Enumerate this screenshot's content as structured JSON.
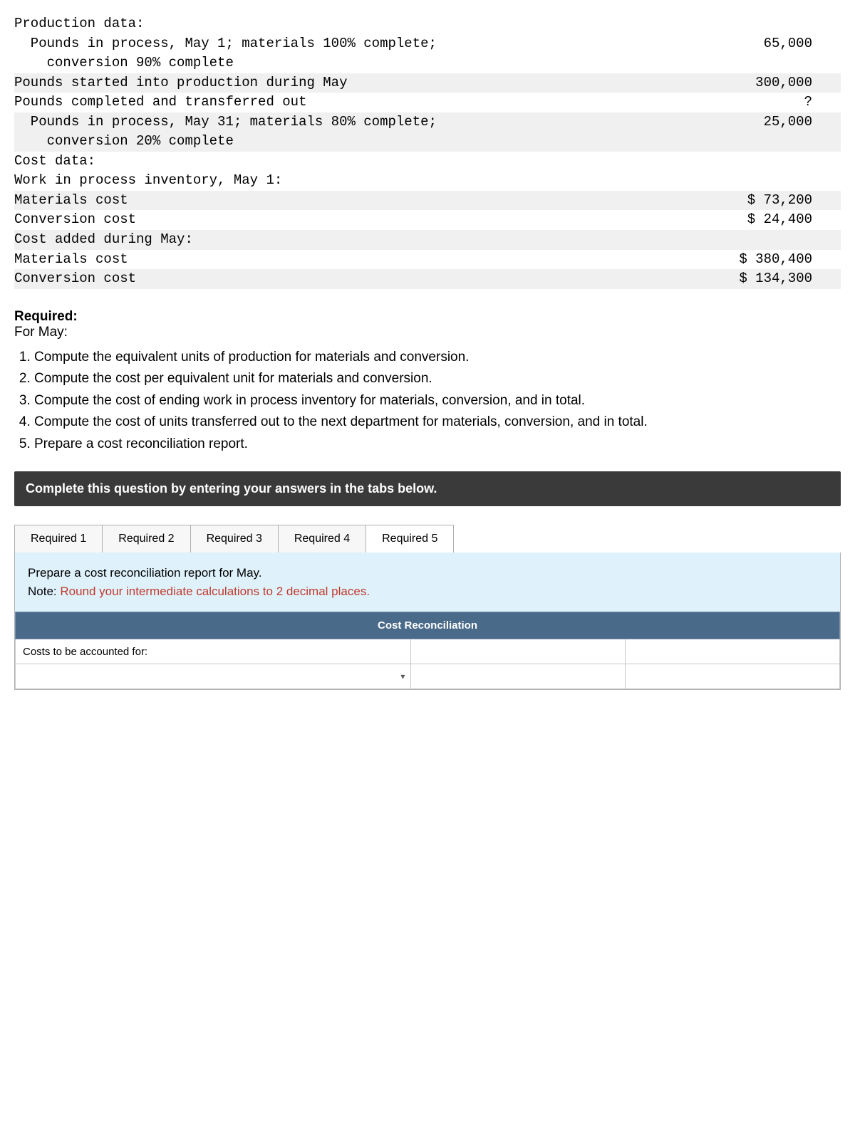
{
  "production": {
    "heading": "Production data:",
    "rows": [
      {
        "label": "  Pounds in process, May 1; materials 100% complete;",
        "value": "65,000",
        "stripe": false
      },
      {
        "label": "    conversion 90% complete",
        "value": "",
        "stripe": false,
        "suppress": true
      },
      {
        "label": "  Pounds started into production during May",
        "value": "300,000",
        "stripe": true
      },
      {
        "label": "  Pounds completed and transferred out",
        "value": "?",
        "stripe": false
      },
      {
        "label": "  Pounds in process, May 31; materials 80% complete;",
        "value": "",
        "stripe": true,
        "suppress": true
      },
      {
        "label": "    conversion 20% complete",
        "value": "25,000",
        "stripe": true
      }
    ],
    "cost_heading": "Cost data:",
    "cost_rows": [
      {
        "label": "  Work in process inventory, May 1:",
        "value": "",
        "stripe": false
      },
      {
        "label": "    Materials cost",
        "value": "$ 73,200",
        "stripe": true
      },
      {
        "label": "    Conversion cost",
        "value": "$ 24,400",
        "stripe": false
      },
      {
        "label": "  Cost added during May:",
        "value": "",
        "stripe": true
      },
      {
        "label": "    Materials cost",
        "value": "$ 380,400",
        "stripe": false
      },
      {
        "label": "    Conversion cost",
        "value": "$ 134,300",
        "stripe": true
      }
    ]
  },
  "required": {
    "heading": "Required:",
    "for_may": "For May:",
    "items": [
      "Compute the equivalent units of production for materials and conversion.",
      "Compute the cost per equivalent unit for materials and conversion.",
      "Compute the cost of ending work in process inventory for materials, conversion, and in total.",
      "Compute the cost of units transferred out to the next department for materials, conversion, and in total.",
      "Prepare a cost reconciliation report."
    ]
  },
  "instruction_bar": "Complete this question by entering your answers in the tabs below.",
  "tabs": [
    "Required 1",
    "Required 2",
    "Required 3",
    "Required 4",
    "Required 5"
  ],
  "active_tab": "Required 5",
  "note": {
    "line1": "Prepare a cost reconciliation report for May.",
    "line2_prefix": "Note: ",
    "line2_rest": "Round your intermediate calculations to 2 decimal places."
  },
  "recon": {
    "header": "Cost Reconciliation",
    "row1_label": "Costs to be accounted for:"
  },
  "colors": {
    "stripe": "#f0f0f0",
    "bar": "#3a3a3a",
    "note_bg": "#dff2fb",
    "table_header": "#4a6a8a",
    "red": "#c0392b"
  }
}
